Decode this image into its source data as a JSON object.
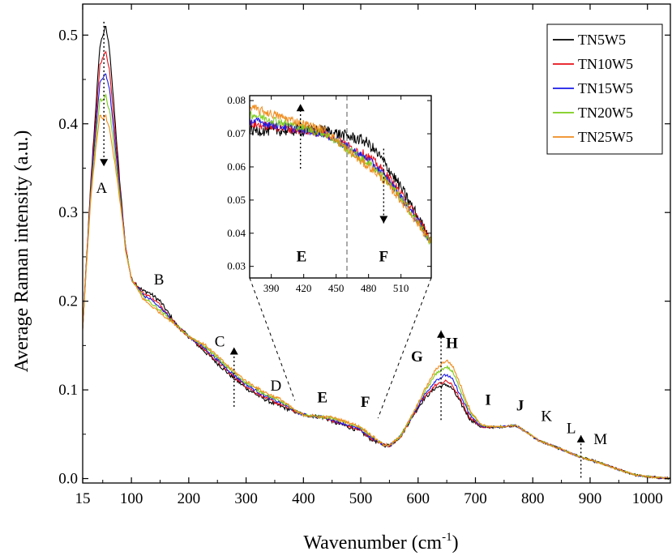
{
  "chart_data": {
    "type": "line",
    "xlabel": "Wavenumber (cm",
    "xlabel_sup": "-1",
    "xlabel_end": ")",
    "ylabel": "Average Raman intensity (a.u.)",
    "xlim": [
      15,
      1040
    ],
    "ylim": [
      -0.005,
      0.535
    ],
    "x_ticks": [
      15,
      100,
      200,
      300,
      400,
      500,
      600,
      700,
      800,
      900,
      1000
    ],
    "y_ticks": [
      0.0,
      0.1,
      0.2,
      0.3,
      0.4,
      0.5
    ],
    "y_tick_labels": [
      "0.0",
      "0.1",
      "0.2",
      "0.3",
      "0.4",
      "0.5"
    ],
    "legend_position": "top-right",
    "series": [
      {
        "name": "TN5W5",
        "color": "#000000",
        "peak": 0.51,
        "h_peak": 0.106,
        "lowmid_delta": 0.01,
        "r200": 0.0,
        "upper_delta": -0.005
      },
      {
        "name": "TN10W5",
        "color": "#e8101a",
        "peak": 0.483,
        "h_peak": 0.11,
        "lowmid_delta": 0.006,
        "r200": 0.002,
        "upper_delta": -0.004
      },
      {
        "name": "TN15W5",
        "color": "#1a1ae8",
        "peak": 0.458,
        "h_peak": 0.117,
        "lowmid_delta": 0.003,
        "r200": 0.004,
        "upper_delta": -0.003
      },
      {
        "name": "TN20W5",
        "color": "#7ccd1a",
        "peak": 0.433,
        "h_peak": 0.126,
        "lowmid_delta": 0.0,
        "r200": 0.006,
        "upper_delta": -0.001
      },
      {
        "name": "TN25W5",
        "color": "#f08c1e",
        "peak": 0.41,
        "h_peak": 0.133,
        "lowmid_delta": -0.003,
        "r200": 0.008,
        "upper_delta": 0.0
      }
    ],
    "shape_profile": [
      [
        15,
        0.17
      ],
      [
        30,
        0.34
      ],
      [
        45,
        0.48
      ],
      [
        55,
        0.5
      ],
      [
        62,
        0.475
      ],
      [
        70,
        0.41
      ],
      [
        80,
        0.33
      ],
      [
        90,
        0.26
      ],
      [
        100,
        0.225
      ],
      [
        120,
        0.205
      ],
      [
        150,
        0.19
      ],
      [
        175,
        0.175
      ],
      [
        200,
        0.16
      ],
      [
        225,
        0.145
      ],
      [
        250,
        0.13
      ],
      [
        275,
        0.115
      ],
      [
        300,
        0.102
      ],
      [
        325,
        0.092
      ],
      [
        350,
        0.084
      ],
      [
        375,
        0.078
      ],
      [
        400,
        0.072
      ],
      [
        420,
        0.07
      ],
      [
        450,
        0.069
      ],
      [
        480,
        0.063
      ],
      [
        500,
        0.058
      ],
      [
        520,
        0.048
      ],
      [
        540,
        0.038
      ],
      [
        550,
        0.037
      ],
      [
        570,
        0.048
      ],
      [
        590,
        0.07
      ],
      [
        610,
        0.09
      ],
      [
        630,
        0.103
      ],
      [
        650,
        0.107
      ],
      [
        660,
        0.102
      ],
      [
        675,
        0.085
      ],
      [
        690,
        0.068
      ],
      [
        710,
        0.058
      ],
      [
        740,
        0.058
      ],
      [
        770,
        0.06
      ],
      [
        790,
        0.052
      ],
      [
        810,
        0.043
      ],
      [
        850,
        0.033
      ],
      [
        880,
        0.025
      ],
      [
        920,
        0.017
      ],
      [
        950,
        0.01
      ],
      [
        980,
        0.004
      ],
      [
        1000,
        0.002
      ],
      [
        1040,
        0.0
      ]
    ],
    "annotations": [
      {
        "text": "A",
        "x": 48,
        "y": 0.322,
        "bold": false
      },
      {
        "text": "B",
        "x": 148,
        "y": 0.219,
        "bold": false
      },
      {
        "text": "C",
        "x": 254,
        "y": 0.149,
        "bold": false
      },
      {
        "text": "D",
        "x": 352,
        "y": 0.099,
        "bold": false
      },
      {
        "text": "E",
        "x": 433,
        "y": 0.086,
        "bold": true
      },
      {
        "text": "F",
        "x": 508,
        "y": 0.081,
        "bold": true
      },
      {
        "text": "G",
        "x": 598,
        "y": 0.132,
        "bold": true
      },
      {
        "text": "H",
        "x": 659,
        "y": 0.147,
        "bold": true
      },
      {
        "text": "I",
        "x": 722,
        "y": 0.083,
        "bold": true
      },
      {
        "text": "J",
        "x": 778,
        "y": 0.077,
        "bold": true
      },
      {
        "text": "K",
        "x": 824,
        "y": 0.065,
        "bold": false
      },
      {
        "text": "L",
        "x": 867,
        "y": 0.051,
        "bold": false
      },
      {
        "text": "M",
        "x": 918,
        "y": 0.039,
        "bold": false
      }
    ],
    "inset": {
      "xlim": [
        370,
        538
      ],
      "ylim": [
        0.0265,
        0.0815
      ],
      "x_ticks": [
        390,
        420,
        450,
        480,
        510
      ],
      "y_ticks": [
        0.03,
        0.04,
        0.05,
        0.06,
        0.07,
        0.08
      ],
      "y_tick_labels": [
        "0.03",
        "0.04",
        "0.05",
        "0.06",
        "0.07",
        "0.08"
      ],
      "divider_x": 460,
      "labels": [
        {
          "text": "E",
          "x": 418,
          "y": 0.0315
        },
        {
          "text": "F",
          "x": 494,
          "y": 0.0315
        }
      ]
    }
  }
}
